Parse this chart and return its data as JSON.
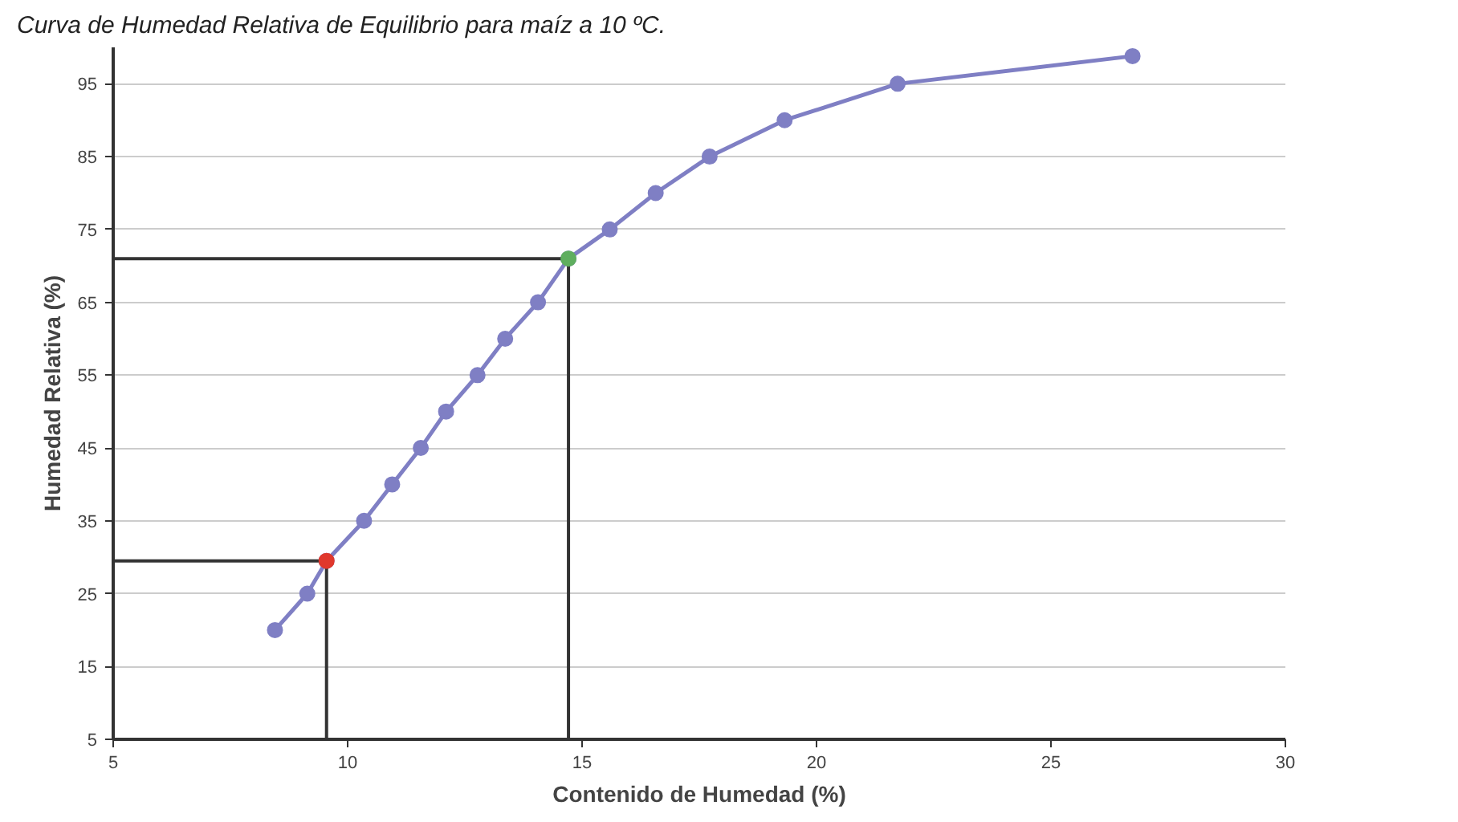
{
  "chart_data": {
    "type": "line",
    "title": "Curva de Humedad Relativa de Equilibrio para maíz a 10 ºC.",
    "xlabel": "Contenido de Humedad (%)",
    "ylabel": "Humedad Relativa (%)",
    "xlim": [
      5,
      30
    ],
    "ylim": [
      5,
      100
    ],
    "xticks": [
      5,
      10,
      15,
      20,
      25,
      30
    ],
    "yticks": [
      5,
      15,
      25,
      35,
      45,
      55,
      65,
      75,
      85,
      95
    ],
    "grid": "y",
    "series": [
      {
        "color": "#7f7fc4",
        "marker": "circle",
        "x": [
          8.45,
          9.14,
          9.55,
          10.35,
          10.95,
          11.56,
          12.1,
          12.77,
          13.36,
          14.06,
          14.71,
          15.59,
          16.57,
          17.72,
          19.32,
          21.73,
          26.74
        ],
        "values": [
          20,
          25,
          29.5,
          35,
          40,
          45,
          50,
          55,
          60,
          65,
          71,
          75,
          80,
          85,
          90,
          95,
          98.8
        ]
      },
      {
        "color": "#333333",
        "marker": "none",
        "x": [
          5,
          9.55,
          9.55
        ],
        "values": [
          29.5,
          29.5,
          5
        ]
      },
      {
        "color": "#333333",
        "marker": "none",
        "x": [
          5,
          14.71,
          14.71
        ],
        "values": [
          71,
          71,
          5
        ]
      },
      {
        "type": "scatter",
        "color": "#e0382c",
        "marker": "circle",
        "x": [
          9.55
        ],
        "values": [
          29.5
        ]
      },
      {
        "type": "scatter",
        "color": "#5fae5f",
        "marker": "circle",
        "x": [
          14.71
        ],
        "values": [
          71
        ]
      }
    ]
  }
}
